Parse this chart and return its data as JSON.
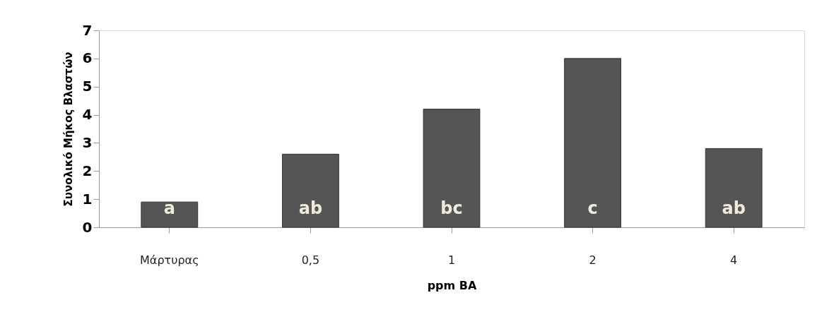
{
  "chart_data": {
    "type": "bar",
    "xlabel": "ppm BA",
    "ylabel": "Συνολικό Μήκος Βλαστών",
    "categories": [
      "Μάρτυρας",
      "0,5",
      "1",
      "2",
      "4"
    ],
    "values": [
      0.9,
      2.6,
      4.2,
      6.0,
      2.8
    ],
    "color": "#555555",
    "ylim": [
      0,
      7
    ],
    "yticks": [
      0,
      1,
      2,
      3,
      4,
      5,
      6,
      7
    ],
    "grid": false,
    "annotations": [
      "a",
      "ab",
      "bc",
      "c",
      "ab"
    ]
  }
}
